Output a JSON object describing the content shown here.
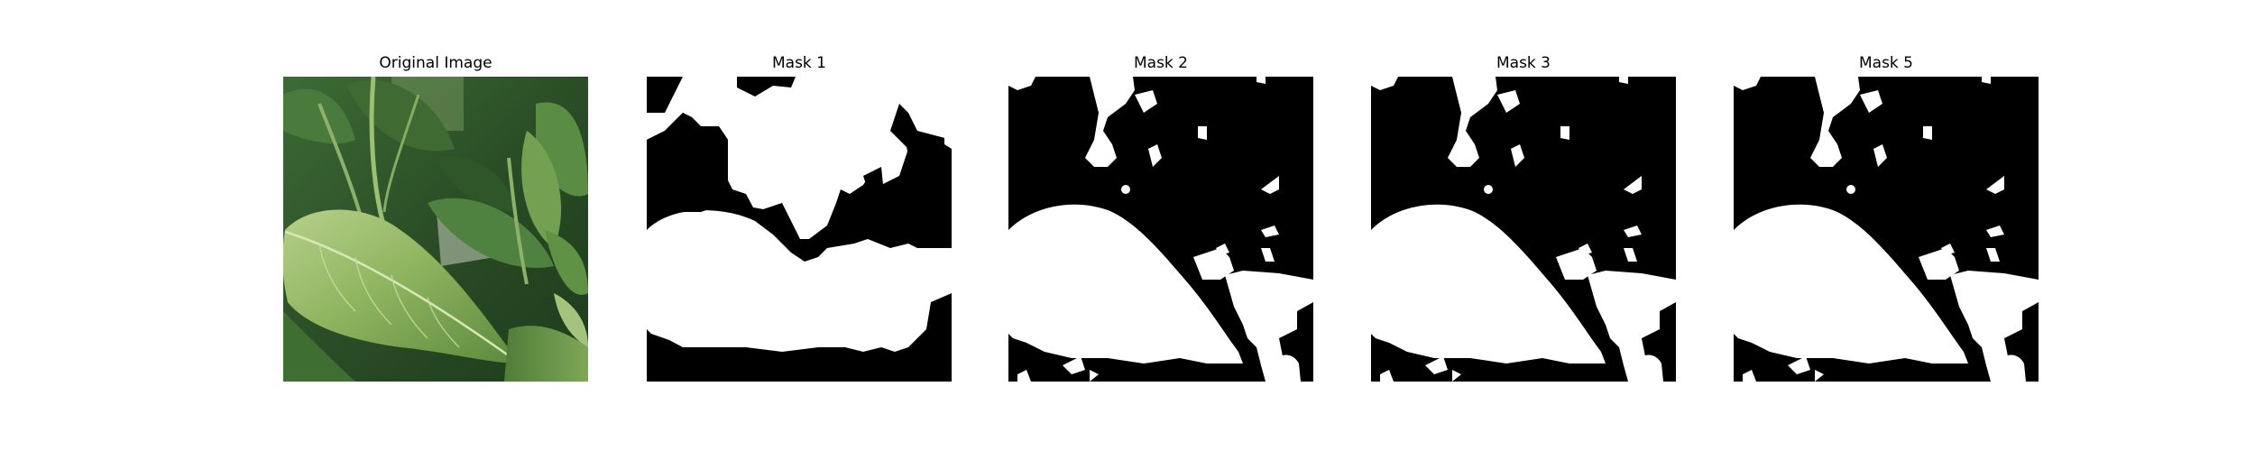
{
  "panels": [
    {
      "id": "original",
      "title": "Original Image"
    },
    {
      "id": "mask1",
      "title": "Mask 1"
    },
    {
      "id": "mask2",
      "title": "Mask 2"
    },
    {
      "id": "mask3",
      "title": "Mask 3"
    },
    {
      "id": "mask5",
      "title": "Mask 5"
    }
  ],
  "colors": {
    "mask_foreground": "#ffffff",
    "mask_background": "#000000",
    "leaf_dark": "#2f5a2a",
    "leaf_light": "#a6c77a"
  }
}
